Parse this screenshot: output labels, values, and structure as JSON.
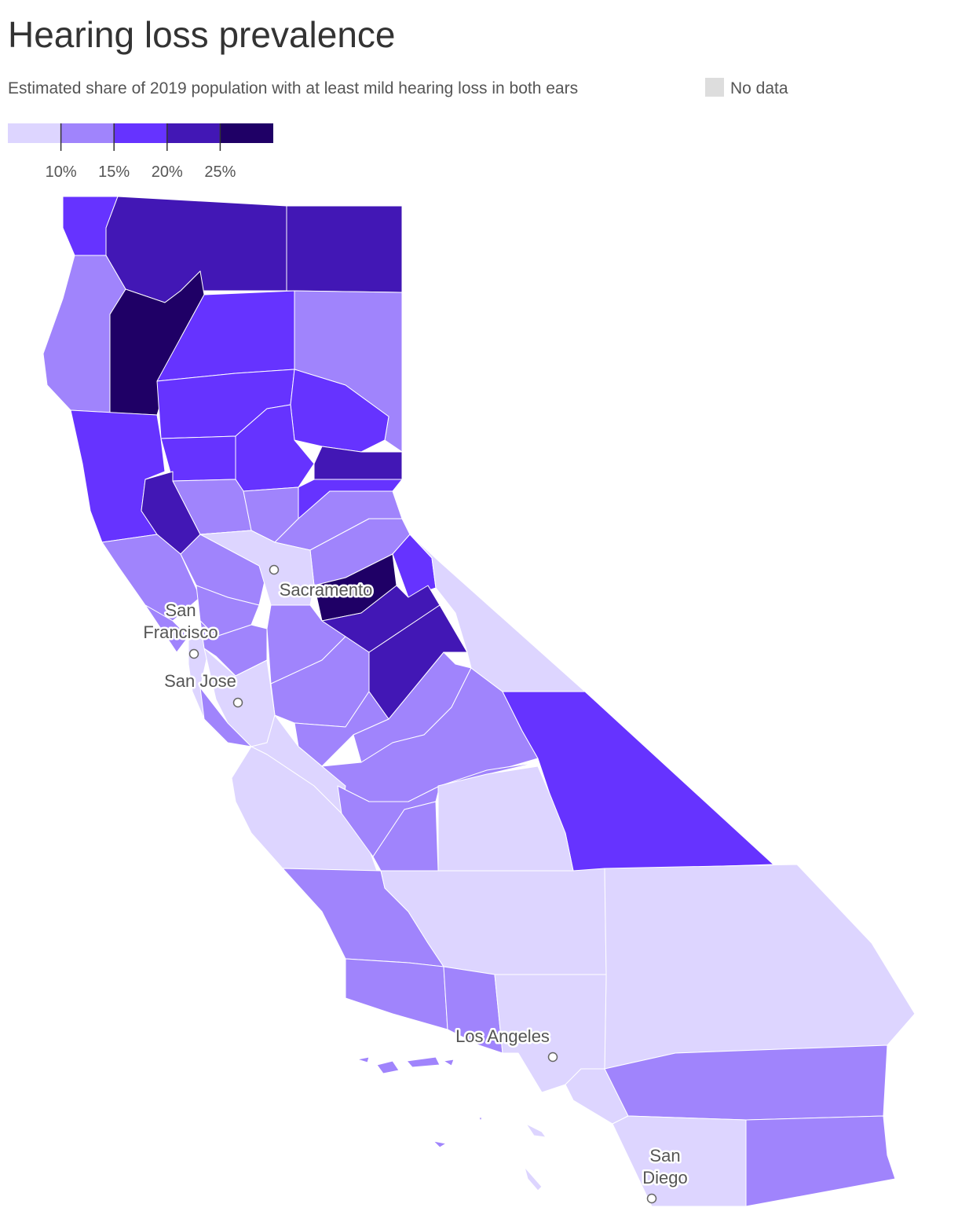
{
  "title": "Hearing loss prevalence",
  "subtitle": "Estimated share of 2019 population with at least mild hearing loss in both ears",
  "legend": {
    "no_data": "No data",
    "colors": [
      "#ddd5ff",
      "#a084fc",
      "#6633ff",
      "#4217b5",
      "#1f0066"
    ],
    "ticks": [
      {
        "value": 10,
        "label": "10%"
      },
      {
        "value": 15,
        "label": "15%"
      },
      {
        "value": 20,
        "label": "20%"
      },
      {
        "value": 25,
        "label": "25%"
      }
    ]
  },
  "cities": [
    {
      "lines": [
        "Sacramento"
      ]
    },
    {
      "lines": [
        "San",
        "Francisco"
      ]
    },
    {
      "lines": [
        "San Jose"
      ]
    },
    {
      "lines": [
        "Los Angeles"
      ]
    },
    {
      "lines": [
        "San",
        "Diego"
      ]
    }
  ]
}
